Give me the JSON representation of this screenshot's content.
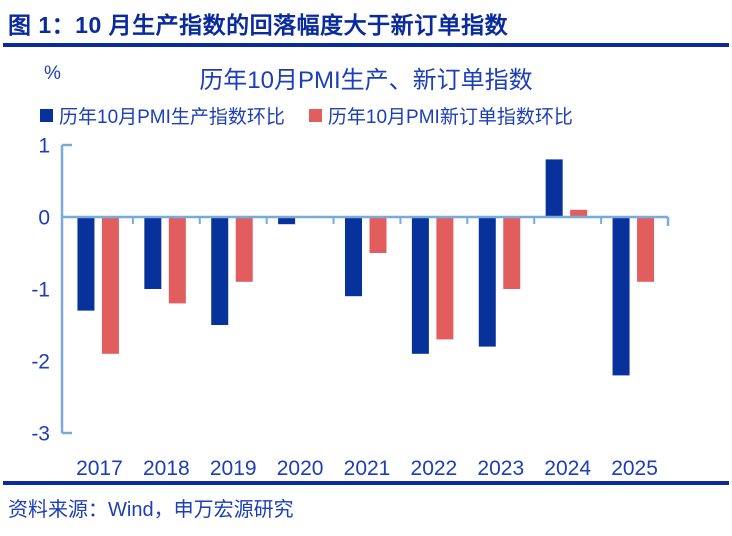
{
  "header": {
    "title": "图 1：10 月生产指数的回落幅度大于新订单指数"
  },
  "chart": {
    "unit_label": "%"
  },
  "chart_data": {
    "type": "bar",
    "title": "历年10月PMI生产、新订单指数",
    "categories": [
      "2017",
      "2018",
      "2019",
      "2020",
      "2021",
      "2022",
      "2023",
      "2024",
      "2025"
    ],
    "series": [
      {
        "name": "历年10月PMI生产指数环比",
        "color": "#08329b",
        "values": [
          -1.3,
          -1.0,
          -1.5,
          -0.1,
          -1.1,
          -1.9,
          -1.8,
          0.8,
          -2.2
        ]
      },
      {
        "name": "历年10月PMI新订单指数环比",
        "color": "#e25e5e",
        "values": [
          -1.9,
          -1.2,
          -0.9,
          0.0,
          -0.5,
          -1.7,
          -1.0,
          0.1,
          -0.9
        ]
      }
    ],
    "xlabel": "",
    "ylabel": "%",
    "ylim": [
      -3,
      1
    ],
    "yticks": [
      1,
      0,
      -1,
      -2,
      -3
    ],
    "grid": false,
    "legend_position": "top",
    "axis_color": "#78abdb",
    "text_color": "#1c3eb8"
  },
  "footer": {
    "source": "资料来源：Wind，申万宏源研究"
  }
}
